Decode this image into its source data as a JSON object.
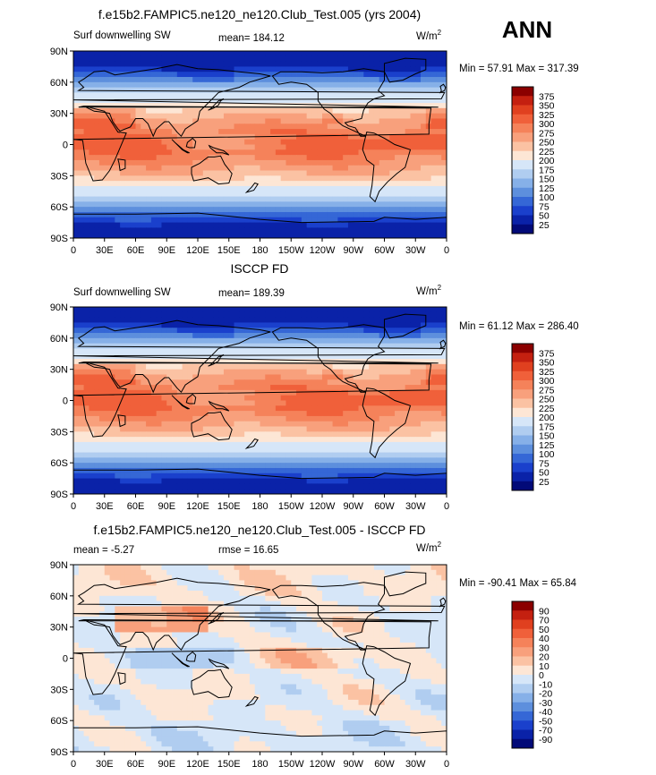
{
  "season": "ANN",
  "panels": [
    {
      "title": "f.e15b2.FAMPIC5.ne120_ne120.Club_Test.005 (yrs 2004)",
      "left_label": "Surf downwelling SW",
      "center_label": "mean= 184.12",
      "units": "W/m",
      "units_sup": "2",
      "minmax": "Min =  57.91 Max = 317.39",
      "colorbar_labels": [
        "375",
        "350",
        "325",
        "300",
        "275",
        "250",
        "225",
        "200",
        "175",
        "150",
        "125",
        "100",
        "75",
        "50",
        "25"
      ],
      "colorbar_colors": [
        "#8b0000",
        "#c42010",
        "#e0401f",
        "#f0603a",
        "#f5825a",
        "#f8a07c",
        "#fbc2a3",
        "#fde6d5",
        "#d6e6f8",
        "#b0cdf0",
        "#86b0e8",
        "#5d8fdd",
        "#3567d6",
        "#1a40cc",
        "#0a22a8",
        "#020a78"
      ],
      "field_type": "sw"
    },
    {
      "title": "ISCCP FD",
      "left_label": "Surf downwelling SW",
      "center_label": "mean= 189.39",
      "units": "W/m",
      "units_sup": "2",
      "minmax": "Min =  61.12 Max = 286.40",
      "colorbar_labels": [
        "375",
        "350",
        "325",
        "300",
        "275",
        "250",
        "225",
        "200",
        "175",
        "150",
        "125",
        "100",
        "75",
        "50",
        "25"
      ],
      "colorbar_colors": [
        "#8b0000",
        "#c42010",
        "#e0401f",
        "#f0603a",
        "#f5825a",
        "#f8a07c",
        "#fbc2a3",
        "#fde6d5",
        "#d6e6f8",
        "#b0cdf0",
        "#86b0e8",
        "#5d8fdd",
        "#3567d6",
        "#1a40cc",
        "#0a22a8",
        "#020a78"
      ],
      "field_type": "sw"
    },
    {
      "title": "f.e15b2.FAMPIC5.ne120_ne120.Club_Test.005 - ISCCP FD",
      "left_label": "mean =  -5.27",
      "center_label": "rmse =  16.65",
      "units": "W/m",
      "units_sup": "2",
      "minmax": "Min = -90.41 Max =  65.84",
      "colorbar_labels": [
        "90",
        "70",
        "50",
        "40",
        "30",
        "20",
        "10",
        "0",
        "-10",
        "-20",
        "-30",
        "-40",
        "-50",
        "-70",
        "-90"
      ],
      "colorbar_colors": [
        "#8b0000",
        "#c42010",
        "#e0401f",
        "#f0603a",
        "#f5825a",
        "#f8a07c",
        "#fbc2a3",
        "#fde6d5",
        "#d6e6f8",
        "#b0cdf0",
        "#86b0e8",
        "#5d8fdd",
        "#3567d6",
        "#1a40cc",
        "#0a22a8",
        "#020a78"
      ],
      "field_type": "diff"
    }
  ],
  "chart_data": {
    "type": "heatmap",
    "x_ticks": [
      "0",
      "30E",
      "60E",
      "90E",
      "120E",
      "150E",
      "180",
      "150W",
      "120W",
      "90W",
      "60W",
      "30W",
      "0"
    ],
    "y_ticks": [
      "90N",
      "60N",
      "30N",
      "0",
      "30S",
      "60S",
      "90S"
    ],
    "xlim": [
      0,
      360
    ],
    "ylim": [
      -90,
      90
    ],
    "grid": false
  }
}
